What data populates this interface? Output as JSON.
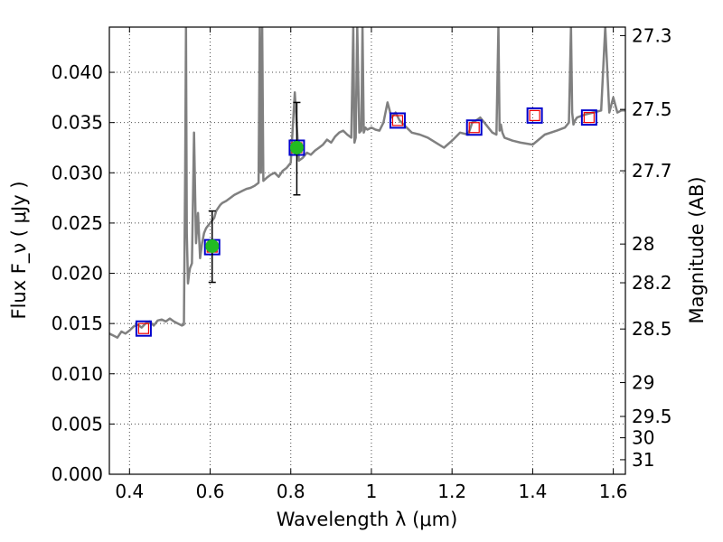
{
  "chart_data": {
    "type": "line",
    "xlabel": "Wavelength  λ (μm)",
    "ylabel": "Flux  F_ν  ( μJy )",
    "y2label": "Magnitude (AB)",
    "xlim": [
      0.35,
      1.63
    ],
    "ylim": [
      0.0,
      0.0445
    ],
    "x_ticks": [
      {
        "value": 0.4,
        "label": "0.4"
      },
      {
        "value": 0.6,
        "label": "0.6"
      },
      {
        "value": 0.8,
        "label": "0.8"
      },
      {
        "value": 1.0,
        "label": "1"
      },
      {
        "value": 1.2,
        "label": "1.2"
      },
      {
        "value": 1.4,
        "label": "1.4"
      },
      {
        "value": 1.6,
        "label": "1.6"
      }
    ],
    "y_ticks": [
      {
        "value": 0.0,
        "label": "0.000"
      },
      {
        "value": 0.005,
        "label": "0.005"
      },
      {
        "value": 0.01,
        "label": "0.010"
      },
      {
        "value": 0.015,
        "label": "0.015"
      },
      {
        "value": 0.02,
        "label": "0.020"
      },
      {
        "value": 0.025,
        "label": "0.025"
      },
      {
        "value": 0.03,
        "label": "0.030"
      },
      {
        "value": 0.035,
        "label": "0.035"
      },
      {
        "value": 0.04,
        "label": "0.040"
      }
    ],
    "mag_ticks": [
      {
        "value": 27.3,
        "label": "27.3"
      },
      {
        "value": 27.5,
        "label": "27.5"
      },
      {
        "value": 27.7,
        "label": "27.7"
      },
      {
        "value": 28.0,
        "label": "28"
      },
      {
        "value": 28.2,
        "label": "28.2"
      },
      {
        "value": 28.5,
        "label": "28.5"
      },
      {
        "value": 29.0,
        "label": "29"
      },
      {
        "value": 29.5,
        "label": "29.5"
      },
      {
        "value": 30.0,
        "label": "30"
      },
      {
        "value": 31.0,
        "label": "31"
      }
    ],
    "grid": true,
    "colors": {
      "spectrum": "#808080",
      "box": "#0000cc",
      "model": "#ee0000",
      "observed": "#22bb22",
      "errorbar": "#000000"
    },
    "spectrum": {
      "x": [
        0.35,
        0.36,
        0.37,
        0.38,
        0.39,
        0.4,
        0.41,
        0.42,
        0.43,
        0.44,
        0.45,
        0.46,
        0.47,
        0.48,
        0.49,
        0.5,
        0.51,
        0.52,
        0.53,
        0.535,
        0.538,
        0.54,
        0.542,
        0.545,
        0.548,
        0.55,
        0.555,
        0.56,
        0.565,
        0.57,
        0.575,
        0.58,
        0.585,
        0.59,
        0.6,
        0.61,
        0.615,
        0.62,
        0.625,
        0.63,
        0.64,
        0.65,
        0.66,
        0.67,
        0.68,
        0.69,
        0.7,
        0.71,
        0.72,
        0.723,
        0.726,
        0.729,
        0.732,
        0.74,
        0.75,
        0.76,
        0.77,
        0.78,
        0.79,
        0.8,
        0.81,
        0.82,
        0.83,
        0.84,
        0.85,
        0.86,
        0.87,
        0.88,
        0.89,
        0.9,
        0.91,
        0.92,
        0.93,
        0.94,
        0.95,
        0.955,
        0.958,
        0.961,
        0.965,
        0.97,
        0.975,
        0.978,
        0.981,
        0.985,
        0.99,
        1.0,
        1.01,
        1.02,
        1.03,
        1.04,
        1.05,
        1.06,
        1.07,
        1.08,
        1.09,
        1.1,
        1.12,
        1.14,
        1.16,
        1.18,
        1.2,
        1.22,
        1.24,
        1.25,
        1.26,
        1.27,
        1.28,
        1.29,
        1.3,
        1.31,
        1.315,
        1.318,
        1.321,
        1.325,
        1.33,
        1.35,
        1.37,
        1.4,
        1.43,
        1.46,
        1.48,
        1.49,
        1.495,
        1.498,
        1.501,
        1.505,
        1.51,
        1.53,
        1.55,
        1.57,
        1.58,
        1.59,
        1.6,
        1.61,
        1.62,
        1.63
      ],
      "y": [
        0.014,
        0.0138,
        0.0136,
        0.0142,
        0.014,
        0.0143,
        0.0147,
        0.0149,
        0.0146,
        0.015,
        0.0152,
        0.0148,
        0.0153,
        0.0154,
        0.0152,
        0.0155,
        0.0152,
        0.015,
        0.0148,
        0.0149,
        0.03,
        0.0445,
        0.024,
        0.019,
        0.02,
        0.0205,
        0.021,
        0.034,
        0.023,
        0.026,
        0.0215,
        0.023,
        0.024,
        0.0245,
        0.025,
        0.0255,
        0.0262,
        0.0265,
        0.0268,
        0.027,
        0.0272,
        0.0275,
        0.0278,
        0.028,
        0.0282,
        0.0284,
        0.0285,
        0.0287,
        0.029,
        0.0445,
        0.03,
        0.0445,
        0.0292,
        0.0295,
        0.0298,
        0.03,
        0.0296,
        0.0302,
        0.0305,
        0.031,
        0.038,
        0.0312,
        0.0315,
        0.032,
        0.0318,
        0.0322,
        0.0325,
        0.0328,
        0.0333,
        0.033,
        0.0336,
        0.034,
        0.0342,
        0.0338,
        0.0335,
        0.0445,
        0.033,
        0.0335,
        0.0445,
        0.034,
        0.0342,
        0.0445,
        0.034,
        0.0345,
        0.0343,
        0.0345,
        0.0343,
        0.0342,
        0.035,
        0.037,
        0.0355,
        0.036,
        0.0352,
        0.0348,
        0.0344,
        0.034,
        0.0338,
        0.0335,
        0.033,
        0.0325,
        0.0332,
        0.034,
        0.0338,
        0.035,
        0.0352,
        0.0355,
        0.035,
        0.0345,
        0.034,
        0.0338,
        0.0445,
        0.0342,
        0.0348,
        0.034,
        0.0335,
        0.0332,
        0.033,
        0.0328,
        0.0338,
        0.0342,
        0.0345,
        0.035,
        0.0445,
        0.036,
        0.0348,
        0.0352,
        0.0355,
        0.0358,
        0.036,
        0.0362,
        0.0445,
        0.036,
        0.0375,
        0.036,
        0.0362,
        0.0362
      ]
    },
    "observed": [
      {
        "x": 0.605,
        "y": 0.0227,
        "yerr_low": 0.0191,
        "yerr_high": 0.0262
      },
      {
        "x": 0.815,
        "y": 0.0325,
        "yerr_low": 0.0278,
        "yerr_high": 0.037
      }
    ],
    "model_boxes": [
      {
        "x": 0.435,
        "y": 0.0145
      },
      {
        "x": 0.605,
        "y": 0.0226
      },
      {
        "x": 0.815,
        "y": 0.0325
      },
      {
        "x": 1.065,
        "y": 0.0352
      },
      {
        "x": 1.255,
        "y": 0.0345
      },
      {
        "x": 1.405,
        "y": 0.0357
      },
      {
        "x": 1.54,
        "y": 0.0355
      }
    ]
  }
}
